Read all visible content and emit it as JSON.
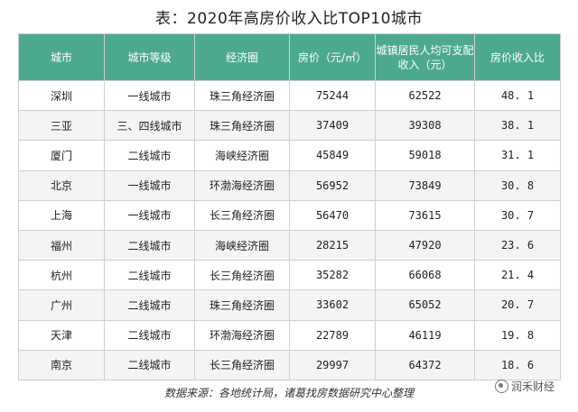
{
  "title": "表：2020年高房价收入比TOP10城市",
  "headers": [
    "城市",
    "城市等级",
    "经济圈",
    "房价（元/㎡）",
    "城镇居民人均可支配收入（元）",
    "房价收入比"
  ],
  "rows": [
    [
      "深圳",
      "一线城市",
      "珠三角经济圈",
      "75244",
      "62522",
      "48. 1"
    ],
    [
      "三亚",
      "三、四线城市",
      "珠三角经济圈",
      "37409",
      "39308",
      "38. 1"
    ],
    [
      "厦门",
      "二线城市",
      "海峡经济圈",
      "45849",
      "59018",
      "31. 1"
    ],
    [
      "北京",
      "一线城市",
      "环渤海经济圈",
      "56952",
      "73849",
      "30. 8"
    ],
    [
      "上海",
      "一线城市",
      "长三角经济圈",
      "56470",
      "73615",
      "30. 7"
    ],
    [
      "福州",
      "二线城市",
      "海峡经济圈",
      "28215",
      "47920",
      "23. 6"
    ],
    [
      "杭州",
      "二线城市",
      "长三角经济圈",
      "35282",
      "66068",
      "21. 4"
    ],
    [
      "广州",
      "二线城市",
      "珠三角经济圈",
      "33602",
      "65052",
      "20. 7"
    ],
    [
      "天津",
      "二线城市",
      "环渤海经济圈",
      "22789",
      "46119",
      "19. 8"
    ],
    [
      "南京",
      "二线城市",
      "长三角经济圈",
      "29997",
      "64372",
      "18. 6"
    ]
  ],
  "source": "数据来源：各地统计局，诸葛找房数据研究中心整理",
  "watermark": "润禾财经",
  "colors": {
    "header_bg": "#4da98e",
    "header_text": "#ffffff",
    "border": "#cfcfcf"
  }
}
